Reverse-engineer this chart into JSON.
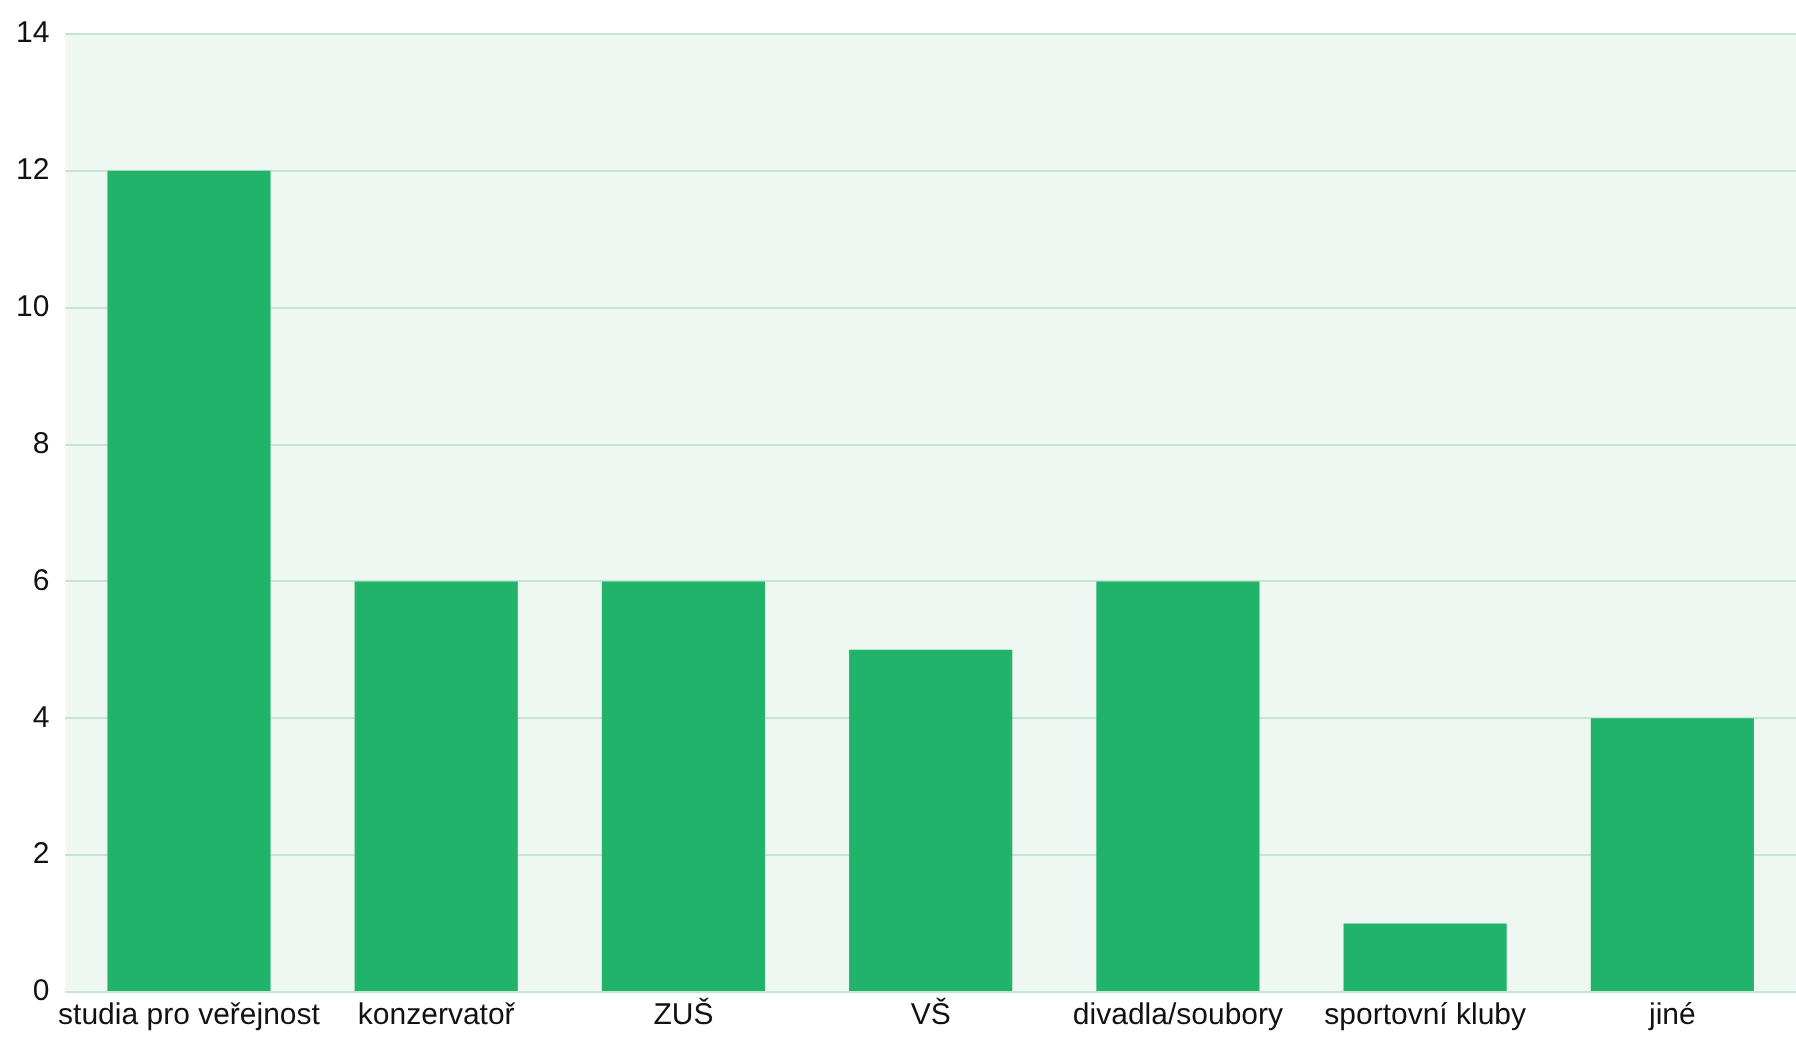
{
  "chart_data": {
    "type": "bar",
    "categories": [
      "studia pro veřejnost",
      "konzervatoř",
      "ZUŠ",
      "VŠ",
      "divadla/soubory",
      "sportovní kluby",
      "jiné"
    ],
    "values": [
      12,
      6,
      6,
      5,
      6,
      1,
      4
    ],
    "color": "#22b36b",
    "ylim": [
      0,
      14
    ],
    "yticks": [
      0,
      2,
      4,
      6,
      8,
      10,
      12,
      14
    ],
    "grid": "y"
  }
}
